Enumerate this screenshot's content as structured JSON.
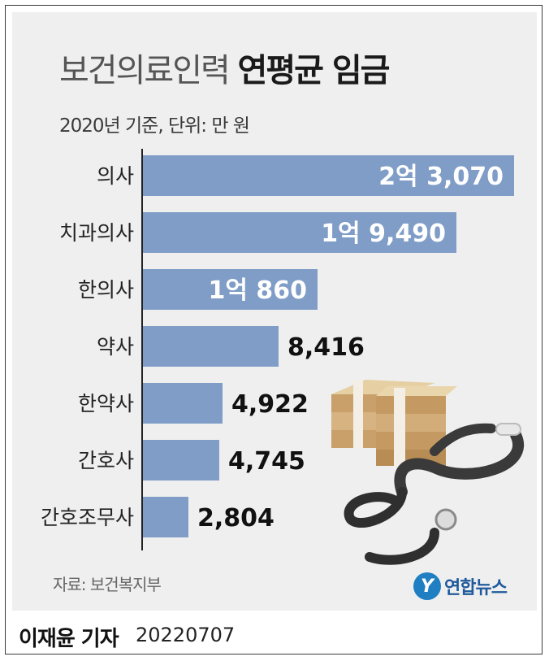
{
  "title": {
    "light": "보건의료인력",
    "bold": "연평균 임금"
  },
  "subtitle": "2020년 기준, 단위: 만 원",
  "source": "자료: 보건복지부",
  "brand": {
    "name": "연합뉴스",
    "mark": "Y"
  },
  "footer": {
    "reporter": "이재윤 기자",
    "date": "20220707"
  },
  "colors": {
    "bar": "#7f9dc7",
    "axis": "#222222",
    "value_inside": "#ffffff",
    "value_outside": "#111111"
  },
  "chart_data": {
    "type": "bar",
    "orientation": "horizontal",
    "categories": [
      "의사",
      "치과의사",
      "한의사",
      "약사",
      "한약사",
      "간호사",
      "간호조무사"
    ],
    "values": [
      23070,
      19490,
      10860,
      8416,
      4922,
      4745,
      2804
    ],
    "value_labels": [
      "2억 3,070",
      "1억 9,490",
      "1억 860",
      "8,416",
      "4,922",
      "4,745",
      "2,804"
    ],
    "title": "보건의료인력 연평균 임금",
    "unit": "만 원",
    "xlim": [
      0,
      23070
    ]
  }
}
